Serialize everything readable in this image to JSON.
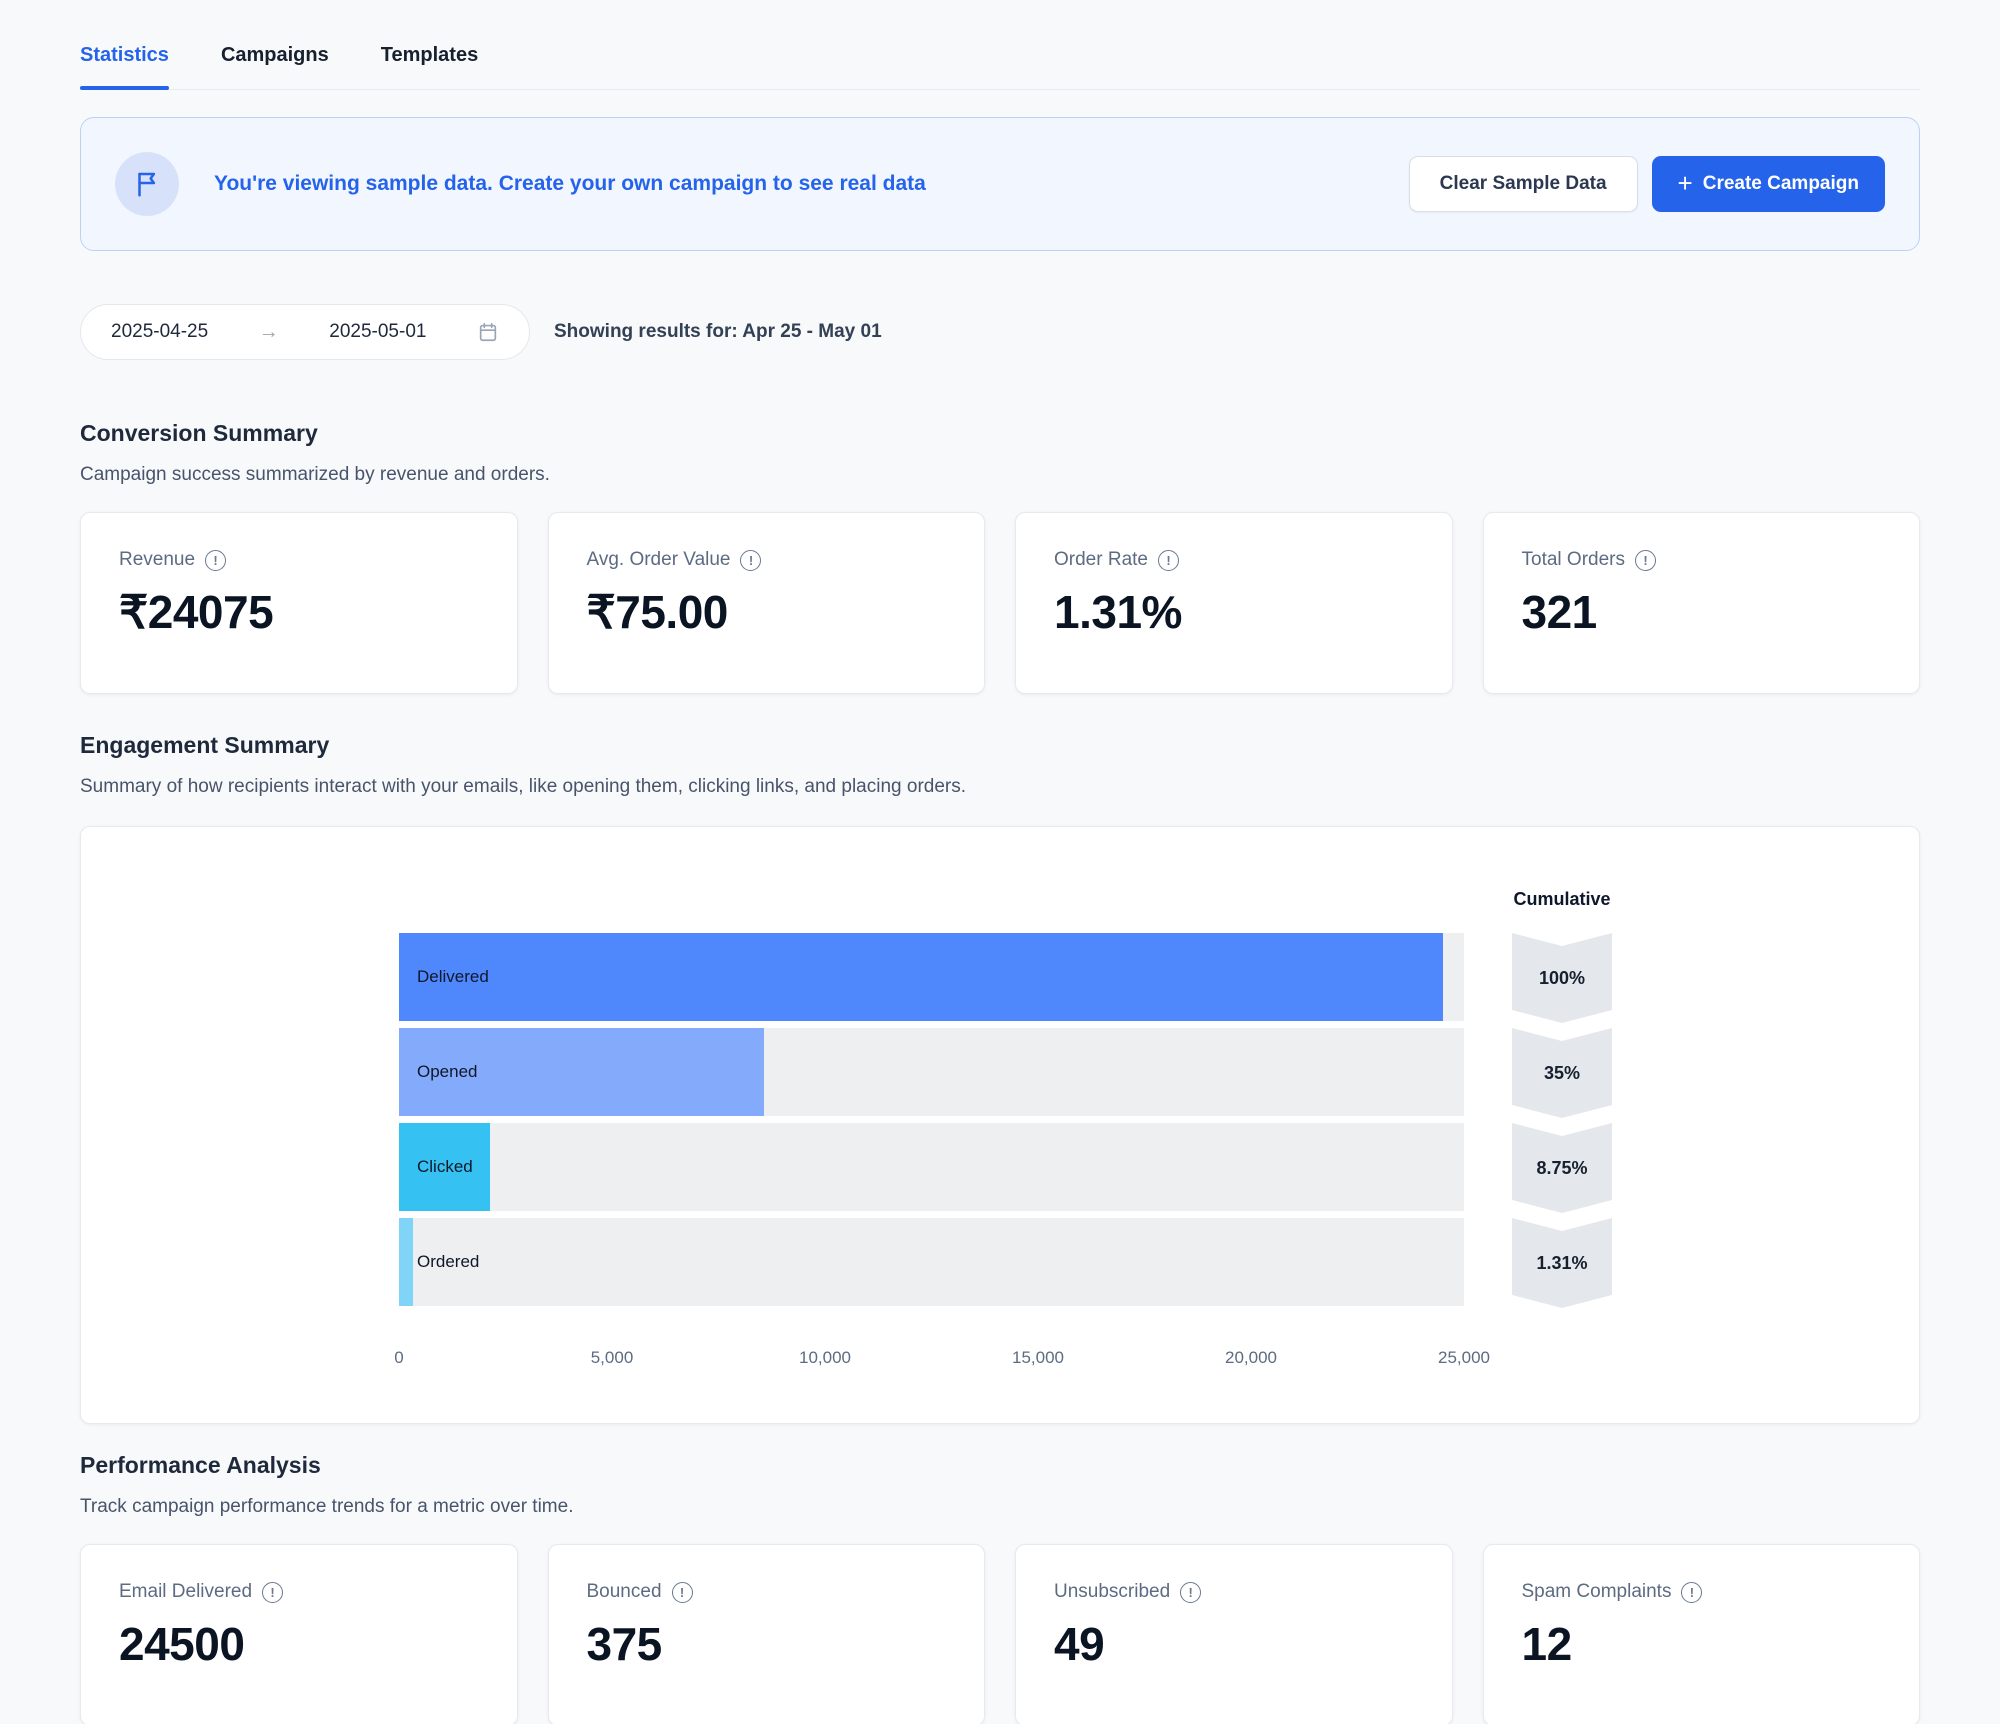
{
  "colors": {
    "accent": "#2563eb",
    "banner_bg": "#f2f6fe",
    "bar_track": "#eeeff1",
    "chevron_bg": "#e4e7ec"
  },
  "icons": [
    "flag-icon",
    "info-icon",
    "calendar-icon",
    "arrow-right-icon",
    "plus-icon"
  ],
  "tabs": [
    {
      "label": "Statistics",
      "active": true
    },
    {
      "label": "Campaigns",
      "active": false
    },
    {
      "label": "Templates",
      "active": false
    }
  ],
  "banner": {
    "message": "You're viewing sample data. Create your own campaign to see real data",
    "clear_button": "Clear Sample Data",
    "create_button": "Create Campaign"
  },
  "date_range": {
    "start": "2025-04-25",
    "end": "2025-05-01",
    "showing": "Showing results for: Apr 25 - May 01"
  },
  "conversion_summary": {
    "title": "Conversion Summary",
    "subtitle": "Campaign success summarized by revenue and orders.",
    "cards": [
      {
        "label": "Revenue",
        "value": "₹24075"
      },
      {
        "label": "Avg. Order Value",
        "value": "₹75.00"
      },
      {
        "label": "Order Rate",
        "value": "1.31%"
      },
      {
        "label": "Total Orders",
        "value": "321"
      }
    ]
  },
  "engagement_summary": {
    "title": "Engagement Summary",
    "subtitle": "Summary of how recipients interact with your emails, like opening them, clicking links, and placing orders."
  },
  "chart_data": {
    "type": "bar",
    "orientation": "horizontal-funnel",
    "title": "Engagement Summary funnel",
    "categories": [
      "Delivered",
      "Opened",
      "Clicked",
      "Ordered"
    ],
    "values": [
      24500,
      8575,
      2144,
      321
    ],
    "bar_colors": [
      "#4f88fc",
      "#84abfb",
      "#35c2f2",
      "#7fd4f7"
    ],
    "cumulative_label": "Cumulative",
    "cumulative_percents": [
      "100%",
      "35%",
      "8.75%",
      "1.31%"
    ],
    "x_ticks": [
      "0",
      "5,000",
      "10,000",
      "15,000",
      "20,000",
      "25,000"
    ],
    "xlim": [
      0,
      25000
    ],
    "grid": false,
    "legend": "none"
  },
  "performance_analysis": {
    "title": "Performance Analysis",
    "subtitle": "Track campaign performance trends for a metric over time.",
    "cards": [
      {
        "label": "Email Delivered",
        "value": "24500"
      },
      {
        "label": "Bounced",
        "value": "375"
      },
      {
        "label": "Unsubscribed",
        "value": "49"
      },
      {
        "label": "Spam Complaints",
        "value": "12"
      }
    ]
  }
}
